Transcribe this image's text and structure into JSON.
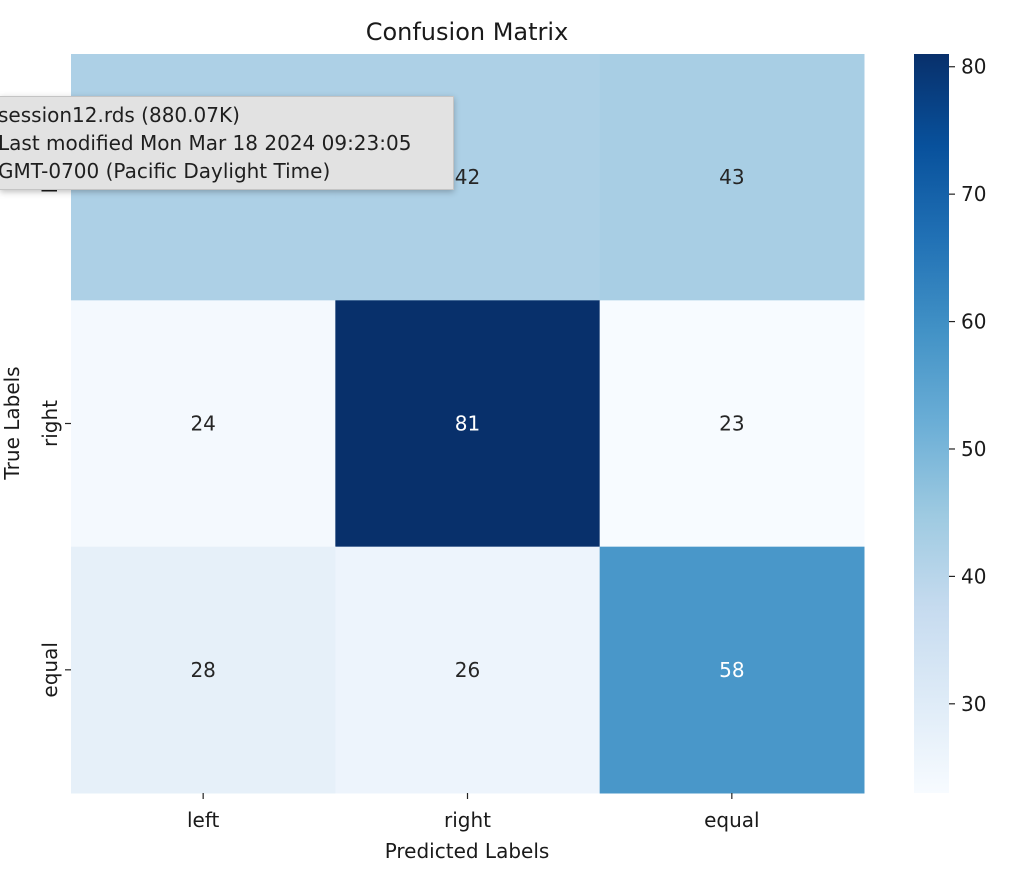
{
  "chart_data": {
    "type": "heatmap",
    "title": "Confusion Matrix",
    "xlabel": "Predicted Labels",
    "ylabel": "True Labels",
    "x_categories": [
      "left",
      "right",
      "equal"
    ],
    "y_categories": [
      "left",
      "right",
      "equal"
    ],
    "values": [
      [
        42,
        42,
        43
      ],
      [
        24,
        81,
        23
      ],
      [
        28,
        26,
        58
      ]
    ],
    "colormap": "Blues",
    "vmin": 23,
    "vmax": 81,
    "colorbar_ticks": [
      30,
      40,
      50,
      60,
      70,
      80
    ]
  },
  "tooltip": {
    "line1": "session12.rds (880.07K)",
    "line2": "Last modified Mon Mar 18 2024 09:23:05",
    "line3": "GMT-0700 (Pacific Daylight Time)"
  }
}
